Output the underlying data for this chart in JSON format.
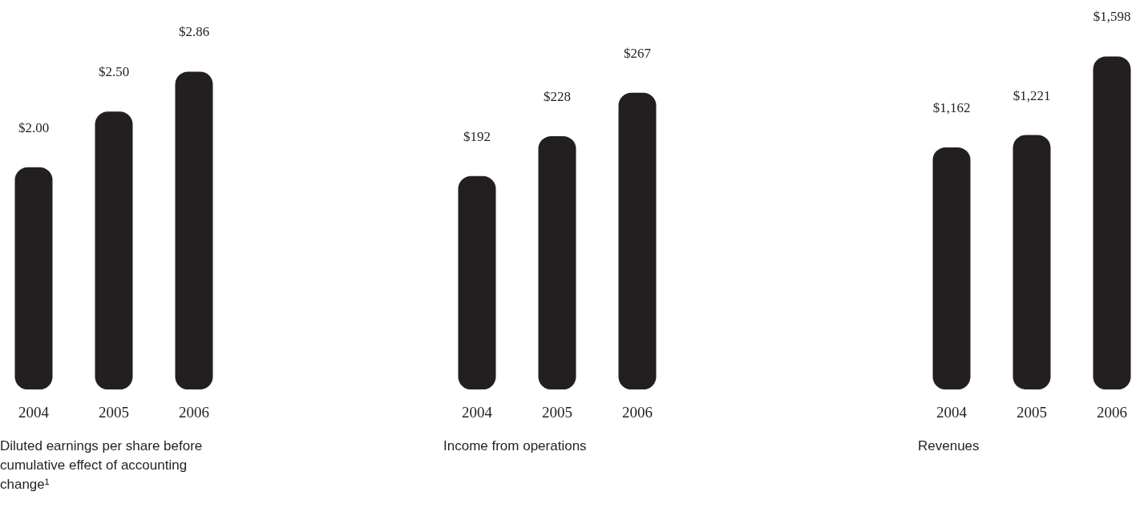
{
  "chart_data": [
    {
      "type": "bar",
      "title": "Diluted earnings per share before cumulative effect of accounting change¹",
      "categories": [
        "2004",
        "2005",
        "2006"
      ],
      "values": [
        2.0,
        2.5,
        2.86
      ],
      "value_labels": [
        "$2.00",
        "$2.50",
        "$2.86"
      ],
      "color": "#231f20"
    },
    {
      "type": "bar",
      "title": "Income from operations",
      "categories": [
        "2004",
        "2005",
        "2006"
      ],
      "values": [
        192,
        228,
        267
      ],
      "value_labels": [
        "$192",
        "$228",
        "$267"
      ],
      "color": "#231f20"
    },
    {
      "type": "bar",
      "title": "Revenues",
      "categories": [
        "2004",
        "2005",
        "2006"
      ],
      "values": [
        1162,
        1221,
        1598
      ],
      "value_labels": [
        "$1,162",
        "$1,221",
        "$1,598"
      ],
      "color": "#231f20"
    }
  ]
}
